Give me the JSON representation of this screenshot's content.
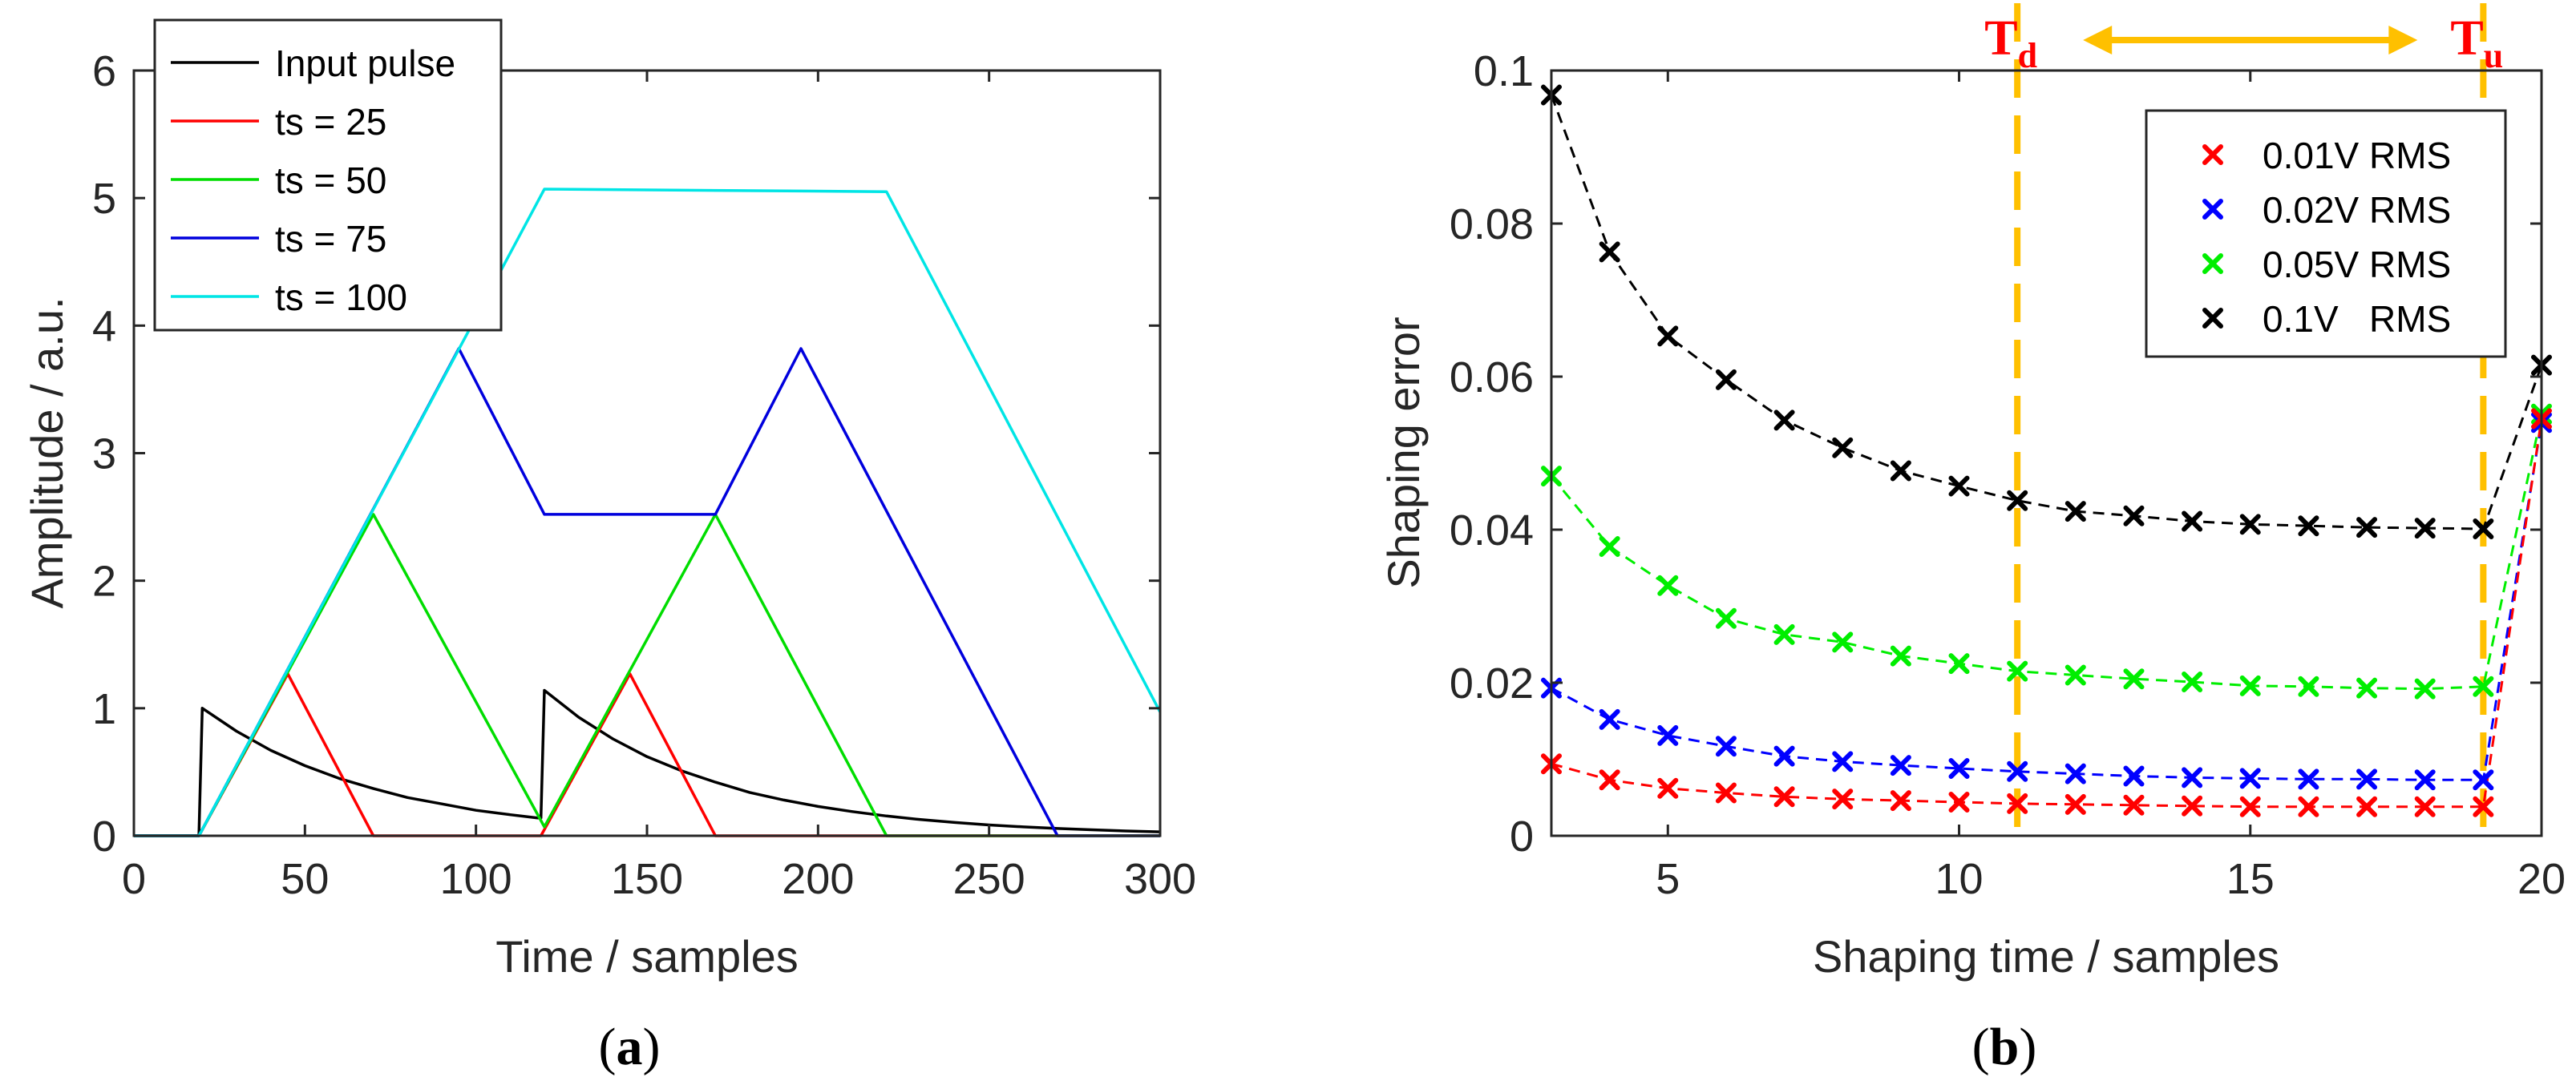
{
  "chart_data": [
    {
      "panel": "(a)",
      "panel_letter": "a",
      "type": "line",
      "xlabel": "Time  / samples",
      "ylabel": "Amplitude / a.u.",
      "xlim": [
        0,
        300
      ],
      "ylim": [
        0,
        6
      ],
      "xticks": [
        0,
        50,
        100,
        150,
        200,
        250,
        300
      ],
      "yticks": [
        0,
        1,
        2,
        3,
        4,
        5,
        6
      ],
      "grid": false,
      "legend_position": "top-left",
      "series": [
        {
          "name": "Input pulse",
          "color": "#000000",
          "points": [
            [
              0,
              0
            ],
            [
              19,
              0
            ],
            [
              20,
              1.0
            ],
            [
              30,
              0.82
            ],
            [
              40,
              0.67
            ],
            [
              50,
              0.55
            ],
            [
              60,
              0.45
            ],
            [
              70,
              0.37
            ],
            [
              80,
              0.3
            ],
            [
              90,
              0.25
            ],
            [
              100,
              0.2
            ],
            [
              110,
              0.165
            ],
            [
              118,
              0.14
            ],
            [
              119,
              0.14
            ],
            [
              120,
              1.14
            ],
            [
              130,
              0.93
            ],
            [
              140,
              0.76
            ],
            [
              150,
              0.62
            ],
            [
              160,
              0.51
            ],
            [
              170,
              0.42
            ],
            [
              180,
              0.34
            ],
            [
              190,
              0.28
            ],
            [
              200,
              0.23
            ],
            [
              210,
              0.19
            ],
            [
              220,
              0.155
            ],
            [
              230,
              0.127
            ],
            [
              240,
              0.104
            ],
            [
              250,
              0.085
            ],
            [
              260,
              0.07
            ],
            [
              270,
              0.057
            ],
            [
              280,
              0.047
            ],
            [
              290,
              0.038
            ],
            [
              300,
              0.031
            ]
          ]
        },
        {
          "name": "ts = 25",
          "color": "#ff0000",
          "points": [
            [
              0,
              0
            ],
            [
              19,
              0
            ],
            [
              45,
              1.27
            ],
            [
              70,
              0
            ],
            [
              119,
              0
            ],
            [
              145,
              1.27
            ],
            [
              170,
              0
            ],
            [
              300,
              0
            ]
          ]
        },
        {
          "name": "ts = 50",
          "color": "#00dd00",
          "points": [
            [
              0,
              0
            ],
            [
              19,
              0
            ],
            [
              70,
              2.52
            ],
            [
              120,
              0.07
            ],
            [
              170,
              2.52
            ],
            [
              220,
              0
            ],
            [
              300,
              0
            ]
          ]
        },
        {
          "name": "ts = 75",
          "color": "#0000dd",
          "points": [
            [
              0,
              0
            ],
            [
              19,
              0
            ],
            [
              95,
              3.82
            ],
            [
              120,
              2.52
            ],
            [
              170,
              2.52
            ],
            [
              195,
              3.82
            ],
            [
              270,
              0
            ],
            [
              300,
              0
            ]
          ]
        },
        {
          "name": "ts = 100",
          "color": "#00e5e5",
          "points": [
            [
              0,
              0
            ],
            [
              19,
              0
            ],
            [
              120,
              5.07
            ],
            [
              220,
              5.05
            ],
            [
              300,
              0.97
            ]
          ]
        }
      ]
    },
    {
      "panel": "(b)",
      "panel_letter": "b",
      "type": "line",
      "xlabel": "Shaping time / samples",
      "ylabel": "Shaping error",
      "xlim": [
        3,
        20
      ],
      "ylim": [
        0,
        0.1
      ],
      "xticks": [
        5,
        10,
        15,
        20
      ],
      "yticks": [
        0,
        0.02,
        0.04,
        0.06,
        0.08,
        0.1
      ],
      "ytick_labels": [
        "0",
        "0.02",
        "0.04",
        "0.06",
        "0.08",
        "0.1"
      ],
      "grid": false,
      "legend_position": "top-right",
      "x": [
        3,
        4,
        5,
        6,
        7,
        8,
        9,
        10,
        11,
        12,
        13,
        14,
        15,
        16,
        17,
        18,
        19,
        20
      ],
      "series": [
        {
          "name": "0.01V RMS",
          "color": "#ff0000",
          "values": [
            0.0094,
            0.0073,
            0.0062,
            0.0056,
            0.0051,
            0.0048,
            0.0046,
            0.0044,
            0.0042,
            0.0041,
            0.004,
            0.0039,
            0.0038,
            0.0038,
            0.0038,
            0.0038,
            0.0038,
            0.0545
          ]
        },
        {
          "name": "0.02V RMS",
          "color": "#0000ff",
          "values": [
            0.0193,
            0.0152,
            0.0131,
            0.0117,
            0.0104,
            0.0097,
            0.0092,
            0.0088,
            0.0084,
            0.0081,
            0.0078,
            0.0076,
            0.0075,
            0.0074,
            0.0074,
            0.0073,
            0.0073,
            0.054
          ]
        },
        {
          "name": "0.05V RMS",
          "color": "#00ee00",
          "values": [
            0.047,
            0.0378,
            0.0327,
            0.0284,
            0.0263,
            0.0253,
            0.0235,
            0.0225,
            0.0215,
            0.021,
            0.0205,
            0.0201,
            0.0196,
            0.0195,
            0.0193,
            0.0192,
            0.0195,
            0.0551
          ]
        },
        {
          "name": "0.1V   RMS",
          "color": "#000000",
          "values": [
            0.0968,
            0.0763,
            0.0653,
            0.0596,
            0.0543,
            0.0507,
            0.0477,
            0.0457,
            0.0438,
            0.0424,
            0.0418,
            0.0411,
            0.0407,
            0.0405,
            0.0403,
            0.0402,
            0.0401,
            0.0615
          ]
        }
      ],
      "vlines": [
        {
          "x": 11,
          "color": "#ffc000",
          "style": "dashed"
        },
        {
          "x": 19,
          "color": "#ffc000",
          "style": "dashed"
        }
      ],
      "annotations": [
        {
          "label": "T",
          "subscript": "d",
          "color": "#ff0000",
          "at_x": 11
        },
        {
          "label": "T",
          "subscript": "u",
          "color": "#ff0000",
          "at_x": 19
        }
      ],
      "arrow": {
        "from_x": 11,
        "to_x": 19,
        "color": "#ffc000",
        "style": "double-headed"
      }
    }
  ]
}
